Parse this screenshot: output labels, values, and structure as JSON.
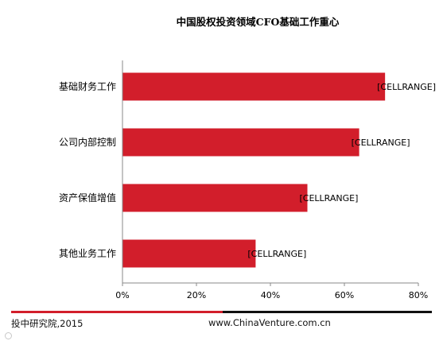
{
  "chart_data": {
    "type": "bar",
    "orientation": "horizontal",
    "title": "中国股权投资领域CFO基础工作重心",
    "categories": [
      "基础财务工作",
      "公司内部控制",
      "资产保值增值",
      "其他业务工作"
    ],
    "values": [
      71,
      64,
      50,
      36
    ],
    "data_labels": [
      "[CELLRANGE]",
      "[CELLRANGE]",
      "[CELLRANGE]",
      "[CELLRANGE]"
    ],
    "x_ticks": [
      "0%",
      "20%",
      "40%",
      "60%",
      "80%"
    ],
    "xlim": [
      0,
      80
    ],
    "grid": false,
    "bar_color": "#d21e2b"
  },
  "footer": {
    "source": "投中研究院,2015",
    "url": "www.ChinaVenture.com.cn"
  },
  "colors": {
    "red_line": "#d21e2b",
    "black_line": "#111111"
  }
}
